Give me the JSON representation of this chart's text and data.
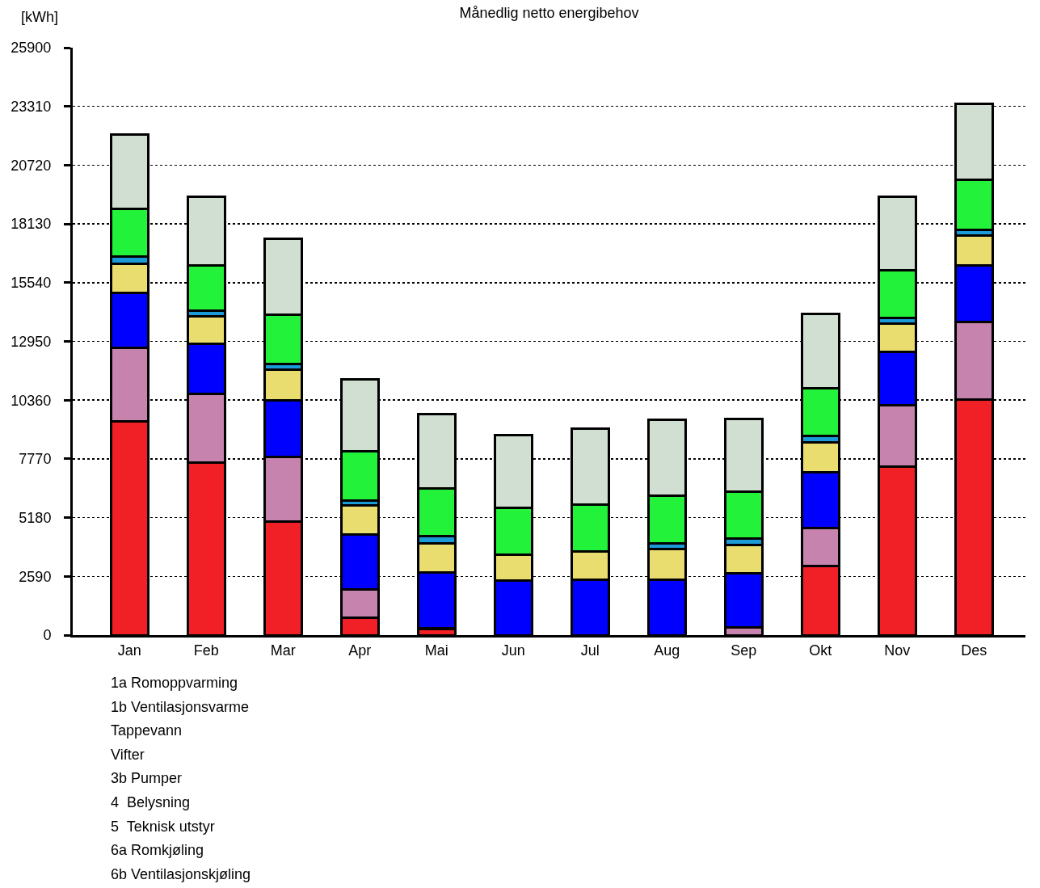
{
  "chart_data": {
    "type": "bar",
    "stacked": true,
    "title": "Månedlig netto energibehov",
    "ylabel": "[kWh]",
    "categories": [
      "Jan",
      "Feb",
      "Mar",
      "Apr",
      "Mai",
      "Jun",
      "Jul",
      "Aug",
      "Sep",
      "Okt",
      "Nov",
      "Des"
    ],
    "series": [
      {
        "color": "#f02026",
        "values": [
          9440,
          7610,
          5020,
          780,
          250,
          null,
          null,
          null,
          null,
          3050,
          7420,
          10380
        ]
      },
      {
        "color": "#c583ad",
        "values": [
          3240,
          3010,
          2850,
          1250,
          50,
          null,
          null,
          null,
          350,
          1680,
          2730,
          3420
        ]
      },
      {
        "color": "#0000ff",
        "values": [
          2420,
          2240,
          2480,
          2410,
          2470,
          2400,
          2450,
          2450,
          2370,
          2450,
          2320,
          2510
        ]
      },
      {
        "color": "#e9dd70",
        "values": [
          1280,
          1180,
          1340,
          1270,
          1270,
          1130,
          1230,
          1330,
          1250,
          1320,
          1260,
          1290
        ]
      },
      {
        "color": "#1a9ad6",
        "values": [
          320,
          250,
          250,
          210,
          330,
          null,
          null,
          250,
          300,
          280,
          240,
          280
        ]
      },
      {
        "color": "#22f23a",
        "values": [
          2100,
          2010,
          2170,
          2170,
          2110,
          2080,
          2060,
          2130,
          2040,
          2120,
          2110,
          2200
        ]
      },
      {
        "color": "#d0dfd1",
        "values": [
          3260,
          3030,
          3350,
          3170,
          3280,
          3210,
          3350,
          3330,
          3210,
          3260,
          3250,
          3330
        ]
      }
    ],
    "ylim": [
      0,
      25900
    ],
    "yticks": [
      0,
      2590,
      5180,
      7770,
      10360,
      12950,
      15540,
      18130,
      20720,
      23310,
      25900
    ],
    "grid": "y",
    "annotations": [
      "1a Romoppvarming",
      "1b Ventilasjonsvarme",
      "Tappevann",
      "Vifter",
      "3b Pumper",
      "4  Belysning",
      "5  Teknisk utstyr",
      "6a Romkjøling",
      "6b Ventilasjonskjøling"
    ]
  }
}
